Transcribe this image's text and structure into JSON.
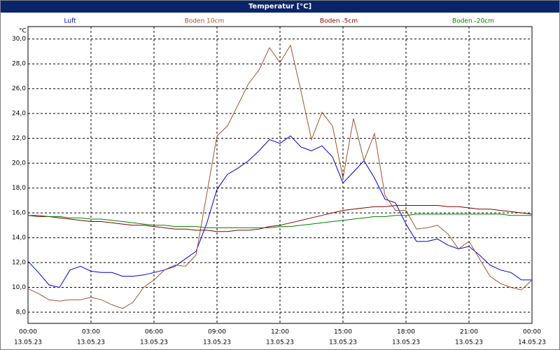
{
  "chart_data": {
    "type": "line",
    "title": "Temperatur [°C]",
    "y_unit": "°C",
    "x": [
      "13.05.23 00:00",
      "13.05.23 00:30",
      "13.05.23 01:00",
      "13.05.23 01:30",
      "13.05.23 02:00",
      "13.05.23 02:30",
      "13.05.23 03:00",
      "13.05.23 03:30",
      "13.05.23 04:00",
      "13.05.23 04:30",
      "13.05.23 05:00",
      "13.05.23 05:30",
      "13.05.23 06:00",
      "13.05.23 06:30",
      "13.05.23 07:00",
      "13.05.23 07:30",
      "13.05.23 08:00",
      "13.05.23 08:30",
      "13.05.23 09:00",
      "13.05.23 09:30",
      "13.05.23 10:00",
      "13.05.23 10:30",
      "13.05.23 11:00",
      "13.05.23 11:30",
      "13.05.23 12:00",
      "13.05.23 12:30",
      "13.05.23 13:00",
      "13.05.23 13:30",
      "13.05.23 14:00",
      "13.05.23 14:30",
      "13.05.23 15:00",
      "13.05.23 15:30",
      "13.05.23 16:00",
      "13.05.23 16:30",
      "13.05.23 17:00",
      "13.05.23 17:30",
      "13.05.23 18:00",
      "13.05.23 18:30",
      "13.05.23 19:00",
      "13.05.23 19:30",
      "13.05.23 20:00",
      "13.05.23 20:30",
      "13.05.23 21:00",
      "13.05.23 21:30",
      "13.05.23 22:00",
      "13.05.23 22:30",
      "13.05.23 23:00",
      "13.05.23 23:30",
      "14.05.23 00:00"
    ],
    "series": [
      {
        "name": "Luft",
        "color": "#0000cc",
        "values": [
          12.1,
          11.2,
          10.2,
          10.0,
          11.4,
          11.7,
          11.3,
          11.2,
          11.2,
          10.9,
          10.9,
          11.0,
          11.2,
          11.4,
          11.7,
          12.3,
          12.9,
          15.1,
          17.9,
          19.1,
          19.6,
          20.2,
          21.0,
          21.9,
          21.6,
          22.2,
          21.3,
          21.0,
          21.4,
          20.5,
          18.4,
          19.3,
          20.2,
          18.8,
          17.1,
          16.8,
          15.1,
          13.7,
          13.7,
          13.9,
          13.4,
          13.1,
          13.3,
          12.6,
          11.8,
          11.4,
          11.2,
          10.6,
          10.6
        ]
      },
      {
        "name": "Boden 10cm",
        "color": "#a0522d",
        "values": [
          9.9,
          9.5,
          9.0,
          8.9,
          9.0,
          9.0,
          9.2,
          9.0,
          8.6,
          8.3,
          8.8,
          10.0,
          10.6,
          11.4,
          11.8,
          11.7,
          12.6,
          17.4,
          22.2,
          23.0,
          24.7,
          26.4,
          27.5,
          29.3,
          28.1,
          29.5,
          25.8,
          21.9,
          24.1,
          23.0,
          18.8,
          23.6,
          20.2,
          22.4,
          17.4,
          16.2,
          16.2,
          14.7,
          14.8,
          15.0,
          14.3,
          13.1,
          13.7,
          12.3,
          10.9,
          10.3,
          10.0,
          9.8,
          10.6
        ]
      },
      {
        "name": "Boden -5cm",
        "color": "#800000",
        "values": [
          15.8,
          15.7,
          15.7,
          15.6,
          15.5,
          15.4,
          15.3,
          15.3,
          15.2,
          15.1,
          15.0,
          15.0,
          14.9,
          14.8,
          14.7,
          14.7,
          14.6,
          14.6,
          14.5,
          14.5,
          14.6,
          14.6,
          14.7,
          14.9,
          15.0,
          15.2,
          15.4,
          15.6,
          15.8,
          16.0,
          16.2,
          16.3,
          16.4,
          16.5,
          16.5,
          16.6,
          16.6,
          16.6,
          16.6,
          16.6,
          16.5,
          16.5,
          16.4,
          16.3,
          16.3,
          16.2,
          16.1,
          16.0,
          15.9
        ]
      },
      {
        "name": "Boden -20cm",
        "color": "#008000",
        "values": [
          15.8,
          15.8,
          15.7,
          15.7,
          15.6,
          15.6,
          15.5,
          15.5,
          15.4,
          15.3,
          15.2,
          15.1,
          15.0,
          15.0,
          14.9,
          14.9,
          14.9,
          14.8,
          14.8,
          14.8,
          14.8,
          14.8,
          14.8,
          14.8,
          14.9,
          14.9,
          15.0,
          15.1,
          15.2,
          15.3,
          15.4,
          15.5,
          15.6,
          15.7,
          15.7,
          15.8,
          15.8,
          15.9,
          15.9,
          15.9,
          15.9,
          15.9,
          15.9,
          15.9,
          15.9,
          15.9,
          15.8,
          15.8,
          15.8
        ]
      }
    ],
    "xlim": [
      "13.05.23 00:00",
      "14.05.23 00:00"
    ],
    "xticks": [
      {
        "value": "13.05.23 00:00",
        "label": [
          "00:00",
          "13.05.23"
        ]
      },
      {
        "value": "13.05.23 03:00",
        "label": [
          "03:00",
          "13.05.23"
        ]
      },
      {
        "value": "13.05.23 06:00",
        "label": [
          "06:00",
          "13.05.23"
        ]
      },
      {
        "value": "13.05.23 09:00",
        "label": [
          "09:00",
          "13.05.23"
        ]
      },
      {
        "value": "13.05.23 12:00",
        "label": [
          "12:00",
          "13.05.23"
        ]
      },
      {
        "value": "13.05.23 15:00",
        "label": [
          "15:00",
          "13.05.23"
        ]
      },
      {
        "value": "13.05.23 18:00",
        "label": [
          "18:00",
          "13.05.23"
        ]
      },
      {
        "value": "13.05.23 21:00",
        "label": [
          "21:00",
          "13.05.23"
        ]
      },
      {
        "value": "14.05.23 00:00",
        "label": [
          "00:00",
          "14.05.23"
        ]
      }
    ],
    "ylim": [
      7.1,
      31.0
    ],
    "yticks": [
      {
        "value": 8,
        "label": "8,0"
      },
      {
        "value": 10,
        "label": "10,0"
      },
      {
        "value": 12,
        "label": "12,0"
      },
      {
        "value": 14,
        "label": "14,0"
      },
      {
        "value": 16,
        "label": "16,0"
      },
      {
        "value": 18,
        "label": "18,0"
      },
      {
        "value": 20,
        "label": "20,0"
      },
      {
        "value": 22,
        "label": "22,0"
      },
      {
        "value": 24,
        "label": "24,0"
      },
      {
        "value": 26,
        "label": "26,0"
      },
      {
        "value": 28,
        "label": "28,0"
      },
      {
        "value": 30,
        "label": "30,0"
      }
    ],
    "grid": true,
    "legend": "top"
  }
}
